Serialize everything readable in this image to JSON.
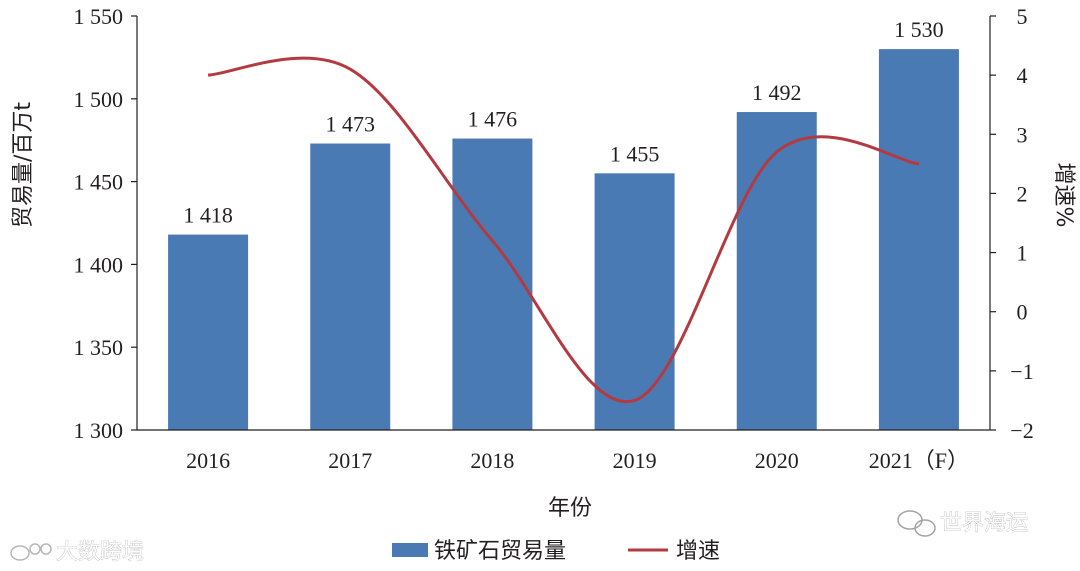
{
  "chart_data": {
    "type": "bar",
    "categories": [
      "2016",
      "2017",
      "2018",
      "2019",
      "2020",
      "2021（F）"
    ],
    "series": [
      {
        "name": "铁矿石贸易量",
        "type": "bar",
        "axis": "left",
        "values": [
          1418,
          1473,
          1476,
          1455,
          1492,
          1530
        ],
        "labels": [
          "1 418",
          "1 473",
          "1 476",
          "1 455",
          "1 492",
          "1 530"
        ],
        "color": "#4a7ab4"
      },
      {
        "name": "增速",
        "type": "line",
        "axis": "right",
        "values": [
          4.0,
          4.1,
          1.2,
          -1.5,
          2.7,
          2.5
        ],
        "color": "#b33a40"
      }
    ],
    "xlabel": "年份",
    "ylabel": "贸易量/百万t",
    "y2label": "增速%",
    "ylim": [
      1300,
      1550
    ],
    "y2lim": [
      -2,
      5
    ],
    "yticks": [
      {
        "value": 1300,
        "label": "1 300"
      },
      {
        "value": 1350,
        "label": "1 350"
      },
      {
        "value": 1400,
        "label": "1 400"
      },
      {
        "value": 1450,
        "label": "1 450"
      },
      {
        "value": 1500,
        "label": "1 500"
      },
      {
        "value": 1550,
        "label": "1 550"
      }
    ],
    "y2ticks": [
      {
        "value": -2,
        "label": "−2"
      },
      {
        "value": -1,
        "label": "−1"
      },
      {
        "value": 0,
        "label": "0"
      },
      {
        "value": 1,
        "label": "1"
      },
      {
        "value": 2,
        "label": "2"
      },
      {
        "value": 3,
        "label": "3"
      },
      {
        "value": 4,
        "label": "4"
      },
      {
        "value": 5,
        "label": "5"
      }
    ],
    "grid": false,
    "legend": "bottom"
  },
  "watermarks": {
    "left": "大数跨境",
    "right": "世界海运"
  }
}
